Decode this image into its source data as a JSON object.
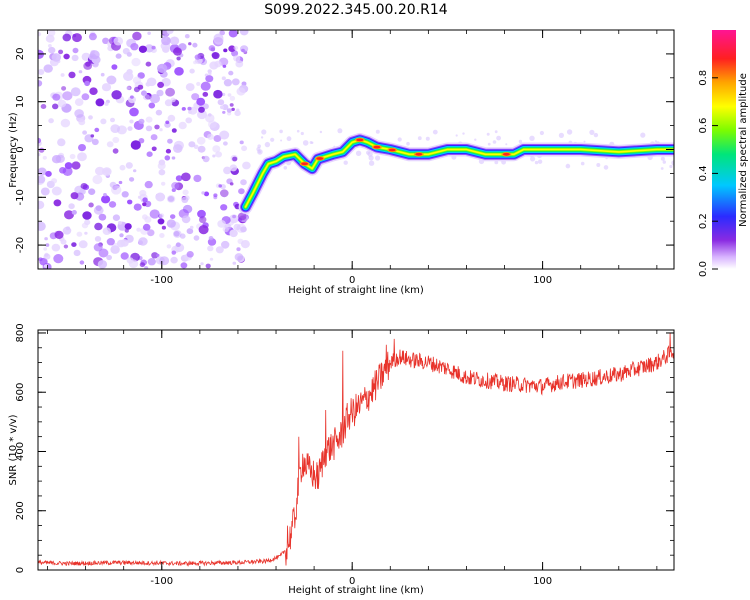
{
  "figure_title": "S099.2022.345.00.20.R14",
  "colors": {
    "snr_line": "#e8332b",
    "noise_speckle": "#8a2be2",
    "frame": "#000000"
  },
  "chart_data": [
    {
      "type": "heatmap",
      "xlabel": "Height of straight line (km)",
      "ylabel": "Frequency (Hz)",
      "xlim": [
        -165,
        169
      ],
      "ylim": [
        -25,
        25
      ],
      "x_ticks": [
        "-100",
        "0",
        "100"
      ],
      "y_ticks": [
        "-20",
        "-10",
        "0",
        "10",
        "20"
      ],
      "colorbar": {
        "label": "Normalized spectral amplitude",
        "range": [
          0,
          1
        ],
        "ticks": [
          "0.0",
          "0.2",
          "0.4",
          "0.6",
          "0.8"
        ],
        "colormap": "rainbow (purple-blue-cyan-green-yellow-orange-red-pink)"
      },
      "noise_region_x": [
        -165,
        -55
      ],
      "signal_track": {
        "x": [
          -56,
          -52,
          -47,
          -44,
          -40,
          -36,
          -30,
          -25,
          -21,
          -18,
          -14,
          -10,
          -5,
          0,
          4,
          8,
          13,
          20,
          30,
          40,
          50,
          60,
          70,
          80,
          85,
          90,
          100,
          120,
          140,
          160,
          169
        ],
        "frequency": [
          -12,
          -9,
          -5,
          -3,
          -2.5,
          -1.5,
          -1,
          -3,
          -4,
          -2,
          -1.5,
          -1,
          -0.5,
          1.5,
          2,
          1.5,
          0.5,
          0,
          -1,
          -1,
          0,
          0,
          -1,
          -1,
          -1,
          0,
          0,
          0,
          -0.5,
          0,
          0
        ]
      },
      "hot_spots_x": [
        -25,
        -17,
        4,
        13,
        21,
        35,
        81
      ]
    },
    {
      "type": "line",
      "xlabel": "Height of straight line (km)",
      "ylabel": "SNR (10 * v/v)",
      "xlim": [
        -165,
        169
      ],
      "ylim": [
        0,
        810
      ],
      "x_ticks": [
        "-100",
        "0",
        "100"
      ],
      "y_ticks": [
        "0",
        "200",
        "400",
        "600",
        "800"
      ],
      "series": [
        {
          "x": [
            -165,
            -150,
            -120,
            -90,
            -60,
            -45,
            -38,
            -34,
            -30,
            -28,
            -26,
            -22,
            -18,
            -14,
            -10,
            -6,
            -2,
            0,
            5,
            10,
            15,
            20,
            25,
            30,
            40,
            50,
            60,
            70,
            80,
            90,
            100,
            110,
            120,
            130,
            140,
            150,
            160,
            169
          ],
          "values": [
            25,
            22,
            25,
            22,
            25,
            30,
            45,
            75,
            180,
            300,
            370,
            330,
            310,
            400,
            420,
            450,
            520,
            530,
            560,
            600,
            650,
            700,
            720,
            710,
            700,
            680,
            650,
            640,
            630,
            625,
            620,
            635,
            640,
            650,
            660,
            680,
            700,
            740
          ]
        }
      ],
      "spikes": [
        {
          "x": -34,
          "value": 150
        },
        {
          "x": -28,
          "value": 450
        },
        {
          "x": -14,
          "value": 540
        },
        {
          "x": -5,
          "value": 740
        },
        {
          "x": 18,
          "value": 760
        },
        {
          "x": 22,
          "value": 780
        },
        {
          "x": 167,
          "value": 800
        }
      ]
    }
  ]
}
